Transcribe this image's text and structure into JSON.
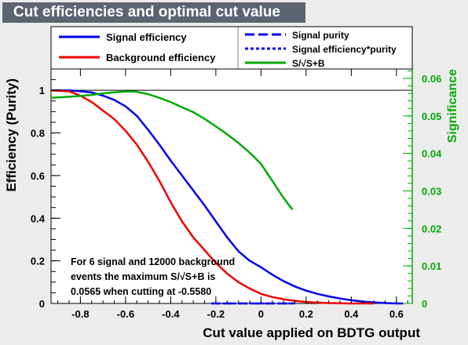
{
  "window_title": "Cut efficiencies and optimal cut value",
  "chart_data": {
    "type": "line",
    "title": "Cut efficiencies and optimal cut value",
    "xlabel": "Cut value applied on BDTG output",
    "ylabel": "Efficiency (Purity)",
    "y2label": "Significance",
    "xlim": [
      -0.93,
      0.67
    ],
    "ylim": [
      0,
      1.1
    ],
    "y2lim": [
      0,
      0.0625
    ],
    "xticks": [
      "-0.8",
      "-0.6",
      "-0.4",
      "-0.2",
      "0",
      "0.2",
      "0.4",
      "0.6"
    ],
    "xtick_values": [
      -0.8,
      -0.6,
      -0.4,
      -0.2,
      0,
      0.2,
      0.4,
      0.6
    ],
    "yticks": [
      "0",
      "0.2",
      "0.4",
      "0.6",
      "0.8",
      "1"
    ],
    "ytick_values": [
      0,
      0.2,
      0.4,
      0.6,
      0.8,
      1
    ],
    "y2ticks": [
      "0",
      "0.01",
      "0.02",
      "0.03",
      "0.04",
      "0.05",
      "0.06"
    ],
    "y2tick_values": [
      0,
      0.01,
      0.02,
      0.03,
      0.04,
      0.05,
      0.06
    ],
    "reference_line_y": 1,
    "series": [
      {
        "name": "Signal efficiency",
        "axis": "left",
        "color": "#0000ee",
        "style": "solid",
        "x": [
          -0.93,
          -0.85,
          -0.8,
          -0.75,
          -0.7,
          -0.65,
          -0.6,
          -0.55,
          -0.5,
          -0.45,
          -0.4,
          -0.35,
          -0.3,
          -0.25,
          -0.2,
          -0.15,
          -0.1,
          -0.05,
          0,
          0.05,
          0.1,
          0.15,
          0.2,
          0.25,
          0.3,
          0.35,
          0.4,
          0.45,
          0.5,
          0.55,
          0.6,
          0.63
        ],
        "y": [
          1.0,
          1.0,
          0.995,
          0.99,
          0.975,
          0.955,
          0.925,
          0.88,
          0.815,
          0.745,
          0.67,
          0.6,
          0.53,
          0.46,
          0.385,
          0.31,
          0.245,
          0.2,
          0.17,
          0.135,
          0.105,
          0.08,
          0.06,
          0.045,
          0.033,
          0.023,
          0.015,
          0.009,
          0.005,
          0.002,
          0.0,
          0.0
        ]
      },
      {
        "name": "Background efficiency",
        "axis": "left",
        "color": "#ee0000",
        "style": "solid",
        "x": [
          -0.93,
          -0.85,
          -0.8,
          -0.75,
          -0.7,
          -0.65,
          -0.6,
          -0.55,
          -0.5,
          -0.45,
          -0.4,
          -0.35,
          -0.3,
          -0.25,
          -0.2,
          -0.15,
          -0.1,
          -0.05,
          0,
          0.05,
          0.1,
          0.15,
          0.2,
          0.25,
          0.3,
          0.35,
          0.4,
          0.45,
          0.5
        ],
        "y": [
          1.0,
          0.995,
          0.975,
          0.945,
          0.905,
          0.865,
          0.81,
          0.745,
          0.665,
          0.575,
          0.475,
          0.385,
          0.31,
          0.25,
          0.19,
          0.14,
          0.1,
          0.07,
          0.045,
          0.03,
          0.02,
          0.012,
          0.007,
          0.004,
          0.002,
          0.001,
          0.0,
          0.0,
          0.0
        ]
      },
      {
        "name": "Signal purity",
        "axis": "left",
        "color": "#0000ee",
        "style": "long-dash",
        "x": [
          -0.22,
          -0.15,
          -0.1,
          -0.05,
          0,
          0.05,
          0.1,
          0.15
        ],
        "y": [
          0.0,
          0.0,
          0.0,
          0.0,
          0.0,
          0.0,
          0.0,
          0.0
        ]
      },
      {
        "name": "Signal efficiency*purity",
        "axis": "left",
        "color": "#0000ee",
        "style": "short-dash",
        "x": [
          -0.22,
          0.15
        ],
        "y": [
          0.0,
          0.0
        ]
      },
      {
        "name": "S/√S+B",
        "axis": "right",
        "color": "#00aa00",
        "style": "solid",
        "x": [
          -0.93,
          -0.85,
          -0.8,
          -0.75,
          -0.7,
          -0.65,
          -0.6,
          -0.558,
          -0.5,
          -0.45,
          -0.4,
          -0.35,
          -0.3,
          -0.25,
          -0.2,
          -0.15,
          -0.1,
          -0.05,
          0,
          0.03,
          0.06,
          0.09,
          0.12,
          0.14
        ],
        "y": [
          0.0548,
          0.0551,
          0.0553,
          0.0556,
          0.056,
          0.0563,
          0.0565,
          0.0565,
          0.0558,
          0.0548,
          0.0537,
          0.0523,
          0.051,
          0.0492,
          0.0472,
          0.0451,
          0.0428,
          0.0402,
          0.0372,
          0.0345,
          0.0318,
          0.029,
          0.0265,
          0.025
        ]
      }
    ],
    "legend": [
      {
        "label": "Signal efficiency",
        "color": "#0000ee",
        "style": "solid"
      },
      {
        "label": "Background efficiency",
        "color": "#ee0000",
        "style": "solid"
      },
      {
        "label": "Signal purity",
        "color": "#0000ee",
        "style": "long-dash"
      },
      {
        "label": "Signal efficiency*purity",
        "color": "#0000ee",
        "style": "short-dash"
      },
      {
        "label": "S/√S+B",
        "color": "#00aa00",
        "style": "solid"
      }
    ],
    "legend_position": "top",
    "annotation": [
      "For 6 signal and 12000 background",
      "events the maximum S/√S+B is",
      "0.0565 when cutting at -0.5580"
    ],
    "right_axis_color": "#00aa00"
  }
}
